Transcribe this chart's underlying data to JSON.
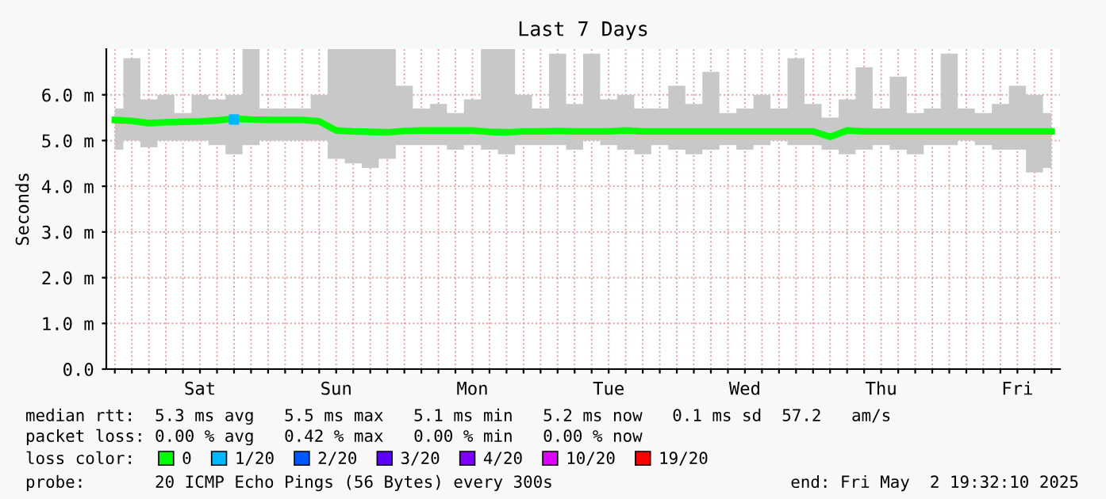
{
  "chart_data": {
    "type": "line",
    "title": "Last 7 Days",
    "ylabel": "Seconds",
    "legend_title": "loss color:",
    "categories": [
      null,
      null,
      null,
      null,
      null,
      "Sat",
      null,
      null,
      null,
      null,
      null,
      null,
      null,
      "Sun",
      null,
      null,
      null,
      null,
      null,
      null,
      null,
      "Mon",
      null,
      null,
      null,
      null,
      null,
      null,
      null,
      "Tue",
      null,
      null,
      null,
      null,
      null,
      null,
      null,
      "Wed",
      null,
      null,
      null,
      null,
      null,
      null,
      null,
      "Thu",
      null,
      null,
      null,
      null,
      null,
      null,
      null,
      "Fri",
      null,
      null
    ],
    "ylim": [
      0,
      7
    ],
    "yticks": [
      {
        "value": 0,
        "label": "0.0"
      },
      {
        "value": 1,
        "label": "1.0 m"
      },
      {
        "value": 2,
        "label": "2.0 m"
      },
      {
        "value": 3,
        "label": "3.0 m"
      },
      {
        "value": 4,
        "label": "4.0 m"
      },
      {
        "value": 5,
        "label": "5.0 m"
      },
      {
        "value": 6,
        "label": "6.0 m"
      }
    ],
    "grid": true,
    "legend": "bottom",
    "marker": "none",
    "line_style": "solid",
    "series": [
      {
        "name": "0",
        "color": "#00ff00",
        "values": [
          5.45,
          5.43,
          5.38,
          5.4,
          5.41,
          5.42,
          5.44,
          5.48,
          5.46,
          5.45,
          5.45,
          5.45,
          5.42,
          5.22,
          5.2,
          5.19,
          5.18,
          5.21,
          5.22,
          5.22,
          5.22,
          5.22,
          5.19,
          5.18,
          5.2,
          5.2,
          5.21,
          5.2,
          5.2,
          5.2,
          5.22,
          5.2,
          5.2,
          5.2,
          5.2,
          5.2,
          5.2,
          5.2,
          5.2,
          5.2,
          5.2,
          5.2,
          5.08,
          5.22,
          5.2,
          5.2,
          5.2,
          5.2,
          5.2,
          5.2,
          5.2,
          5.2,
          5.2,
          5.2,
          5.2,
          5.2
        ],
        "lower": [
          4.8,
          5.0,
          4.85,
          5.0,
          5.0,
          5.0,
          4.9,
          4.7,
          4.9,
          5.0,
          5.0,
          5.0,
          5.0,
          4.6,
          4.5,
          4.4,
          4.6,
          4.9,
          4.9,
          4.9,
          4.8,
          4.9,
          4.8,
          4.7,
          4.9,
          4.9,
          4.9,
          4.8,
          5.0,
          4.9,
          4.8,
          4.7,
          4.9,
          4.8,
          4.7,
          4.8,
          4.9,
          4.8,
          4.9,
          5.0,
          4.9,
          4.9,
          4.8,
          4.7,
          4.8,
          4.9,
          4.8,
          4.7,
          4.9,
          4.9,
          5.0,
          4.9,
          4.8,
          4.8,
          4.3,
          4.4
        ],
        "upper": [
          5.7,
          6.8,
          5.9,
          6.0,
          5.6,
          6.0,
          5.9,
          6.0,
          7.0,
          5.7,
          5.7,
          5.7,
          6.0,
          7.0,
          7.0,
          7.0,
          7.0,
          6.2,
          5.7,
          5.8,
          5.6,
          5.9,
          7.0,
          7.0,
          6.0,
          5.7,
          6.9,
          5.8,
          6.9,
          5.9,
          6.0,
          5.7,
          5.7,
          6.2,
          5.8,
          6.5,
          5.6,
          5.7,
          6.0,
          5.7,
          6.8,
          5.8,
          5.5,
          5.9,
          6.6,
          5.7,
          6.4,
          5.6,
          5.7,
          6.9,
          5.7,
          5.6,
          5.8,
          6.2,
          6.0,
          5.6
        ]
      },
      {
        "name": "1/20",
        "color": "#00b8ff",
        "type": "scatter",
        "marker": "square",
        "values": [
          null,
          null,
          null,
          null,
          null,
          null,
          null,
          5.46,
          null,
          null,
          null,
          null,
          null,
          null,
          null,
          null,
          null,
          null,
          null,
          null,
          null,
          null,
          null,
          null,
          null,
          null,
          null,
          null,
          null,
          null,
          null,
          null,
          null,
          null,
          null,
          null,
          null,
          null,
          null,
          null,
          null,
          null,
          null,
          null,
          null,
          null,
          null,
          null,
          null,
          null,
          null,
          null,
          null,
          null,
          null,
          null
        ]
      },
      {
        "name": "2/20",
        "color": "#0059ff",
        "type": "scatter",
        "marker": "square",
        "values": [
          null,
          null,
          null,
          null,
          null,
          null,
          null,
          null,
          null,
          null,
          null,
          null,
          null,
          null,
          null,
          null,
          null,
          null,
          null,
          null,
          null,
          null,
          null,
          null,
          null,
          null,
          null,
          null,
          null,
          null,
          null,
          null,
          null,
          null,
          null,
          null,
          null,
          null,
          null,
          null,
          null,
          null,
          null,
          null,
          null,
          null,
          null,
          null,
          null,
          null,
          null,
          null,
          null,
          null,
          null,
          null
        ]
      },
      {
        "name": "3/20",
        "color": "#5e00ff",
        "type": "scatter",
        "marker": "square",
        "values": [
          null,
          null,
          null,
          null,
          null,
          null,
          null,
          null,
          null,
          null,
          null,
          null,
          null,
          null,
          null,
          null,
          null,
          null,
          null,
          null,
          null,
          null,
          null,
          null,
          null,
          null,
          null,
          null,
          null,
          null,
          null,
          null,
          null,
          null,
          null,
          null,
          null,
          null,
          null,
          null,
          null,
          null,
          null,
          null,
          null,
          null,
          null,
          null,
          null,
          null,
          null,
          null,
          null,
          null,
          null,
          null
        ]
      },
      {
        "name": "4/20",
        "color": "#7e00ff",
        "type": "scatter",
        "marker": "square",
        "values": [
          null,
          null,
          null,
          null,
          null,
          null,
          null,
          null,
          null,
          null,
          null,
          null,
          null,
          null,
          null,
          null,
          null,
          null,
          null,
          null,
          null,
          null,
          null,
          null,
          null,
          null,
          null,
          null,
          null,
          null,
          null,
          null,
          null,
          null,
          null,
          null,
          null,
          null,
          null,
          null,
          null,
          null,
          null,
          null,
          null,
          null,
          null,
          null,
          null,
          null,
          null,
          null,
          null,
          null,
          null,
          null
        ]
      },
      {
        "name": "10/20",
        "color": "#dd00ff",
        "type": "scatter",
        "marker": "square",
        "values": [
          null,
          null,
          null,
          null,
          null,
          null,
          null,
          null,
          null,
          null,
          null,
          null,
          null,
          null,
          null,
          null,
          null,
          null,
          null,
          null,
          null,
          null,
          null,
          null,
          null,
          null,
          null,
          null,
          null,
          null,
          null,
          null,
          null,
          null,
          null,
          null,
          null,
          null,
          null,
          null,
          null,
          null,
          null,
          null,
          null,
          null,
          null,
          null,
          null,
          null,
          null,
          null,
          null,
          null,
          null,
          null
        ]
      },
      {
        "name": "19/20",
        "color": "#ff0000",
        "type": "scatter",
        "marker": "square",
        "values": [
          null,
          null,
          null,
          null,
          null,
          null,
          null,
          null,
          null,
          null,
          null,
          null,
          null,
          null,
          null,
          null,
          null,
          null,
          null,
          null,
          null,
          null,
          null,
          null,
          null,
          null,
          null,
          null,
          null,
          null,
          null,
          null,
          null,
          null,
          null,
          null,
          null,
          null,
          null,
          null,
          null,
          null,
          null,
          null,
          null,
          null,
          null,
          null,
          null,
          null,
          null,
          null,
          null,
          null,
          null,
          null
        ]
      }
    ],
    "annotations": [
      "median rtt:  5.3 ms avg   5.5 ms max   5.1 ms min   5.2 ms now   0.1 ms sd  57.2   am/s",
      "packet loss: 0.00 % avg   0.42 % max   0.00 % min   0.00 % now",
      "probe:       20 ICMP Echo Pings (56 Bytes) every 300s",
      "end: Fri May  2 19:32:10 2025"
    ]
  }
}
